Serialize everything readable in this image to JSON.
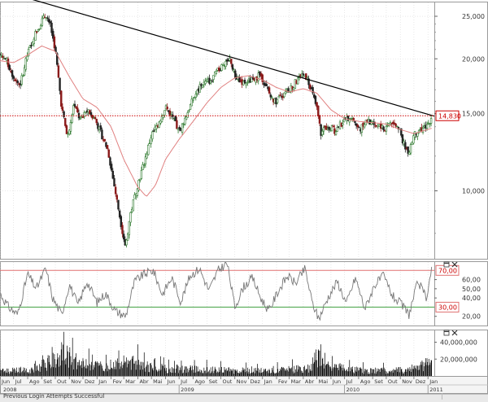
{
  "chart_data": [
    {
      "type": "candlestick",
      "panel": "price",
      "scale": "log",
      "ylim": [
        7000,
        27000
      ],
      "ytick_labels": [
        "25,000",
        "20,000",
        "15,000",
        "10,000"
      ],
      "ytick_values": [
        25000,
        20000,
        15000,
        10000
      ],
      "last_value_label": "14,830",
      "last_value": 14830,
      "grid": true,
      "x_start": "2008-06-01",
      "x_end": "2011-01-15",
      "price_path": [
        [
          "2008-06-01",
          20500
        ],
        [
          "2008-06-15",
          19800
        ],
        [
          "2008-07-01",
          18200
        ],
        [
          "2008-07-15",
          17400
        ],
        [
          "2008-08-01",
          20500
        ],
        [
          "2008-08-15",
          22500
        ],
        [
          "2008-09-01",
          24400
        ],
        [
          "2008-09-12",
          25200
        ],
        [
          "2008-09-20",
          23800
        ],
        [
          "2008-10-01",
          21000
        ],
        [
          "2008-10-15",
          15500
        ],
        [
          "2008-10-28",
          13200
        ],
        [
          "2008-11-10",
          15800
        ],
        [
          "2008-11-25",
          14500
        ],
        [
          "2008-12-10",
          15200
        ],
        [
          "2008-12-25",
          14800
        ],
        [
          "2009-01-10",
          13500
        ],
        [
          "2009-01-25",
          12400
        ],
        [
          "2009-02-10",
          10000
        ],
        [
          "2009-02-25",
          8200
        ],
        [
          "2009-03-05",
          7450
        ],
        [
          "2009-03-15",
          8800
        ],
        [
          "2009-03-30",
          10200
        ],
        [
          "2009-04-15",
          11600
        ],
        [
          "2009-05-01",
          13400
        ],
        [
          "2009-05-15",
          14200
        ],
        [
          "2009-06-01",
          15500
        ],
        [
          "2009-06-15",
          14800
        ],
        [
          "2009-07-01",
          13600
        ],
        [
          "2009-07-15",
          14700
        ],
        [
          "2009-08-01",
          16200
        ],
        [
          "2009-08-20",
          17500
        ],
        [
          "2009-09-10",
          17900
        ],
        [
          "2009-09-25",
          18800
        ],
        [
          "2009-10-10",
          19700
        ],
        [
          "2009-10-20",
          20100
        ],
        [
          "2009-11-01",
          18300
        ],
        [
          "2009-11-20",
          17600
        ],
        [
          "2009-12-10",
          17900
        ],
        [
          "2009-12-28",
          18400
        ],
        [
          "2010-01-10",
          17200
        ],
        [
          "2010-01-25",
          15900
        ],
        [
          "2010-02-10",
          16300
        ],
        [
          "2010-02-28",
          16900
        ],
        [
          "2010-03-15",
          17700
        ],
        [
          "2010-04-05",
          18400
        ],
        [
          "2010-04-15",
          17500
        ],
        [
          "2010-05-01",
          15400
        ],
        [
          "2010-05-10",
          13500
        ],
        [
          "2010-05-25",
          14100
        ],
        [
          "2010-06-10",
          13700
        ],
        [
          "2010-06-28",
          14400
        ],
        [
          "2010-07-15",
          14900
        ],
        [
          "2010-08-01",
          13800
        ],
        [
          "2010-08-20",
          14400
        ],
        [
          "2010-09-10",
          14100
        ],
        [
          "2010-09-25",
          13800
        ],
        [
          "2010-10-10",
          14300
        ],
        [
          "2010-10-28",
          13900
        ],
        [
          "2010-11-10",
          12700
        ],
        [
          "2010-11-20",
          12300
        ],
        [
          "2010-12-01",
          13400
        ],
        [
          "2010-12-15",
          13800
        ],
        [
          "2011-01-01",
          14200
        ],
        [
          "2011-01-10",
          14830
        ]
      ],
      "moving_average": [
        [
          "2008-06-01",
          19800
        ],
        [
          "2008-07-01",
          19600
        ],
        [
          "2008-08-01",
          20400
        ],
        [
          "2008-09-01",
          21400
        ],
        [
          "2008-10-01",
          20800
        ],
        [
          "2008-11-01",
          18200
        ],
        [
          "2008-12-01",
          16200
        ],
        [
          "2009-01-01",
          15500
        ],
        [
          "2009-02-01",
          14000
        ],
        [
          "2009-03-01",
          11800
        ],
        [
          "2009-04-01",
          10200
        ],
        [
          "2009-04-20",
          9700
        ],
        [
          "2009-05-10",
          10300
        ],
        [
          "2009-06-01",
          11800
        ],
        [
          "2009-07-01",
          13100
        ],
        [
          "2009-08-01",
          14400
        ],
        [
          "2009-09-01",
          15900
        ],
        [
          "2009-10-01",
          17200
        ],
        [
          "2009-11-01",
          18100
        ],
        [
          "2009-12-01",
          18300
        ],
        [
          "2010-01-01",
          17900
        ],
        [
          "2010-02-01",
          17200
        ],
        [
          "2010-03-01",
          16800
        ],
        [
          "2010-04-01",
          17100
        ],
        [
          "2010-05-01",
          16700
        ],
        [
          "2010-06-01",
          15300
        ],
        [
          "2010-07-01",
          14600
        ],
        [
          "2010-08-01",
          14400
        ],
        [
          "2010-09-01",
          14300
        ],
        [
          "2010-10-01",
          14200
        ],
        [
          "2010-11-01",
          13800
        ],
        [
          "2010-12-01",
          13500
        ],
        [
          "2011-01-10",
          13900
        ]
      ],
      "trendline": [
        [
          "2008-08-01",
          27500
        ],
        [
          "2011-01-15",
          14800
        ]
      ],
      "reference_line_value": 14830
    },
    {
      "type": "line",
      "panel": "oscillator",
      "ylim": [
        10,
        80
      ],
      "ytick_values": [
        20,
        40,
        50,
        60
      ],
      "ytick_labels": [
        "20,00",
        "40,00",
        "50,00",
        "60,00"
      ],
      "upper_level_label": "70,00",
      "upper_level": 70,
      "lower_level_label": "30,00",
      "lower_level": 30,
      "x_start": "2008-06-01",
      "x_end": "2011-01-15",
      "path": [
        [
          "2008-06-01",
          45
        ],
        [
          "2008-06-20",
          30
        ],
        [
          "2008-07-10",
          22
        ],
        [
          "2008-08-01",
          66
        ],
        [
          "2008-08-20",
          50
        ],
        [
          "2008-09-10",
          72
        ],
        [
          "2008-09-25",
          40
        ],
        [
          "2008-10-15",
          22
        ],
        [
          "2008-11-01",
          55
        ],
        [
          "2008-11-20",
          32
        ],
        [
          "2008-12-10",
          58
        ],
        [
          "2009-01-01",
          35
        ],
        [
          "2009-01-20",
          45
        ],
        [
          "2009-02-10",
          26
        ],
        [
          "2009-03-05",
          20
        ],
        [
          "2009-03-25",
          58
        ],
        [
          "2009-04-15",
          66
        ],
        [
          "2009-05-05",
          70
        ],
        [
          "2009-05-25",
          44
        ],
        [
          "2009-06-15",
          62
        ],
        [
          "2009-07-05",
          36
        ],
        [
          "2009-07-25",
          64
        ],
        [
          "2009-08-15",
          72
        ],
        [
          "2009-09-05",
          48
        ],
        [
          "2009-09-25",
          70
        ],
        [
          "2009-10-15",
          78
        ],
        [
          "2009-11-01",
          30
        ],
        [
          "2009-11-20",
          52
        ],
        [
          "2009-12-10",
          62
        ],
        [
          "2009-12-28",
          40
        ],
        [
          "2010-01-15",
          26
        ],
        [
          "2010-02-05",
          48
        ],
        [
          "2010-02-25",
          64
        ],
        [
          "2010-03-15",
          56
        ],
        [
          "2010-04-05",
          72
        ],
        [
          "2010-04-20",
          36
        ],
        [
          "2010-05-05",
          17
        ],
        [
          "2010-05-25",
          40
        ],
        [
          "2010-06-15",
          58
        ],
        [
          "2010-07-05",
          34
        ],
        [
          "2010-07-25",
          62
        ],
        [
          "2010-08-15",
          28
        ],
        [
          "2010-09-05",
          54
        ],
        [
          "2010-09-25",
          64
        ],
        [
          "2010-10-15",
          42
        ],
        [
          "2010-11-05",
          32
        ],
        [
          "2010-11-20",
          22
        ],
        [
          "2010-12-10",
          58
        ],
        [
          "2010-12-28",
          40
        ],
        [
          "2011-01-10",
          74
        ]
      ]
    },
    {
      "type": "bar",
      "panel": "volume",
      "ylim": [
        0,
        55000000
      ],
      "ytick_values": [
        20000000,
        40000000
      ],
      "ytick_labels": [
        "20,000,000",
        "40,000,000"
      ],
      "x_start": "2008-06-01",
      "x_end": "2011-01-15",
      "volume_profile": [
        [
          "2008-06-01",
          9000000
        ],
        [
          "2008-08-01",
          11000000
        ],
        [
          "2008-09-15",
          24000000
        ],
        [
          "2008-10-10",
          30000000
        ],
        [
          "2008-10-20",
          52000000
        ],
        [
          "2008-11-15",
          22000000
        ],
        [
          "2009-01-15",
          16000000
        ],
        [
          "2009-03-10",
          26000000
        ],
        [
          "2009-05-15",
          14000000
        ],
        [
          "2009-08-01",
          12000000
        ],
        [
          "2009-10-15",
          10000000
        ],
        [
          "2010-01-15",
          9000000
        ],
        [
          "2010-04-15",
          14000000
        ],
        [
          "2010-05-07",
          50000000
        ],
        [
          "2010-05-25",
          20000000
        ],
        [
          "2010-08-15",
          9000000
        ],
        [
          "2010-11-15",
          11000000
        ],
        [
          "2011-01-10",
          26000000
        ]
      ]
    }
  ],
  "x_axis": {
    "month_labels": [
      [
        "Jun",
        "2008-06-01"
      ],
      [
        "Jul",
        "2008-07-01"
      ],
      [
        "Ago",
        "2008-08-01"
      ],
      [
        "Set",
        "2008-09-01"
      ],
      [
        "Out",
        "2008-10-01"
      ],
      [
        "Nov",
        "2008-11-01"
      ],
      [
        "Dez",
        "2008-12-01"
      ],
      [
        "Jan",
        "2009-01-01"
      ],
      [
        "Fev",
        "2009-02-01"
      ],
      [
        "Mar",
        "2009-03-01"
      ],
      [
        "Abr",
        "2009-04-01"
      ],
      [
        "Mai",
        "2009-05-01"
      ],
      [
        "Jun",
        "2009-06-01"
      ],
      [
        "Jul",
        "2009-07-01"
      ],
      [
        "Ago",
        "2009-08-01"
      ],
      [
        "Set",
        "2009-09-01"
      ],
      [
        "Out",
        "2009-10-01"
      ],
      [
        "Nov",
        "2009-11-01"
      ],
      [
        "Dez",
        "2009-12-01"
      ],
      [
        "Jan",
        "2010-01-01"
      ],
      [
        "Fev",
        "2010-02-01"
      ],
      [
        "Mar",
        "2010-03-01"
      ],
      [
        "Abr",
        "2010-04-01"
      ],
      [
        "Mai",
        "2010-05-01"
      ],
      [
        "Jun",
        "2010-06-01"
      ],
      [
        "Jul",
        "2010-07-01"
      ],
      [
        "Ago",
        "2010-08-01"
      ],
      [
        "Set",
        "2010-09-01"
      ],
      [
        "Out",
        "2010-10-01"
      ],
      [
        "Nov",
        "2010-11-01"
      ],
      [
        "Dez",
        "2010-12-01"
      ],
      [
        "Jan",
        "2011-01-01"
      ]
    ],
    "year_labels": [
      [
        "2008",
        "2008-06-01"
      ],
      [
        "2009",
        "2009-07-01"
      ],
      [
        "2010",
        "2010-07-01"
      ],
      [
        "2011",
        "2011-01-01"
      ]
    ]
  },
  "status": {
    "text": "Previous Login Attempts Successful"
  },
  "colors": {
    "candle_up": "#2f7a2f",
    "candle_down": "#222222",
    "candle_red": "#8b1a1a",
    "moving_average": "#e08080",
    "trendline": "#000000",
    "reference_line": "#cc0000",
    "last_value_box_border": "#cc0000",
    "last_value_text": "#cc0000",
    "oscillator_line": "#777777",
    "upper_level": "#e07070",
    "lower_level": "#3fa03f",
    "volume_bar": "#000000",
    "grid": "#d8d8d8"
  },
  "panel_icons": [
    "maximize-icon",
    "close-icon"
  ]
}
